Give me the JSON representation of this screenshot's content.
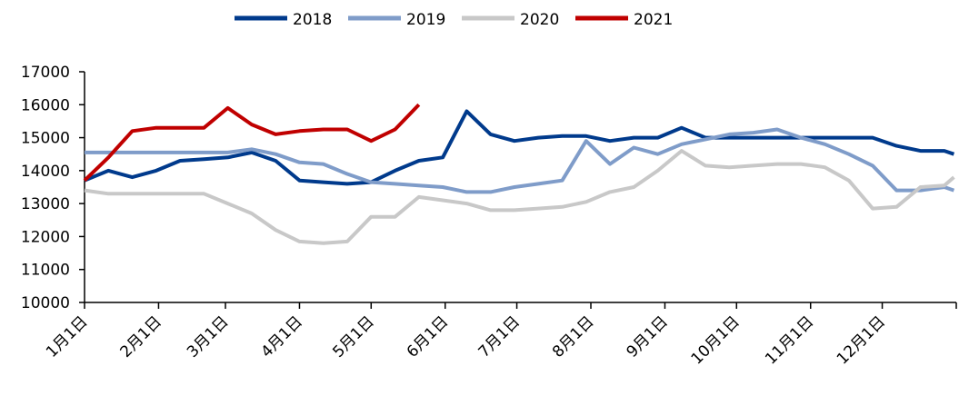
{
  "chart_data": {
    "type": "line",
    "x": [
      0,
      10,
      20,
      30,
      40,
      50,
      60,
      70,
      80,
      90,
      100,
      110,
      120,
      130,
      140,
      150,
      160,
      170,
      180,
      190,
      200,
      210,
      220,
      230,
      240,
      250,
      260,
      270,
      280,
      290,
      300,
      310,
      320,
      330,
      340,
      350,
      360,
      364
    ],
    "series": [
      {
        "name": "2018",
        "color": "#003a8c",
        "values": [
          13700,
          14000,
          13800,
          14000,
          14300,
          14350,
          14400,
          14550,
          14300,
          13700,
          13650,
          13600,
          13650,
          14000,
          14300,
          14400,
          15800,
          15100,
          14900,
          15000,
          15050,
          15050,
          14900,
          15000,
          15000,
          15300,
          15000,
          15000,
          15000,
          15000,
          15000,
          15000,
          15000,
          15000,
          14750,
          14600,
          14600,
          14500
        ]
      },
      {
        "name": "2019",
        "color": "#7f9cc9",
        "values": [
          14550,
          14550,
          14550,
          14550,
          14550,
          14550,
          14550,
          14650,
          14500,
          14250,
          14200,
          13900,
          13650,
          13600,
          13550,
          13500,
          13350,
          13350,
          13500,
          13600,
          13700,
          14900,
          14200,
          14700,
          14500,
          14800,
          14950,
          15100,
          15150,
          15250,
          15000,
          14800,
          14500,
          14150,
          13400,
          13400,
          13500,
          13400
        ]
      },
      {
        "name": "2020",
        "color": "#c8c8c8",
        "values": [
          13400,
          13300,
          13300,
          13300,
          13300,
          13300,
          13000,
          12700,
          12200,
          11850,
          11800,
          11850,
          12600,
          12600,
          13200,
          13100,
          13000,
          12800,
          12800,
          12850,
          12900,
          13050,
          13350,
          13500,
          14000,
          14600,
          14150,
          14100,
          14150,
          14200,
          14200,
          14100,
          13700,
          12850,
          12900,
          13500,
          13550,
          13800
        ]
      },
      {
        "name": "2021",
        "color": "#c00000",
        "values": [
          13700,
          14400,
          15200,
          15300,
          15300,
          15300,
          15900,
          15400,
          15100,
          15200,
          15250,
          15250,
          14900,
          15250,
          16000,
          null,
          null,
          null,
          null,
          null,
          null,
          null,
          null,
          null,
          null,
          null,
          null,
          null,
          null,
          null,
          null,
          null,
          null,
          null,
          null,
          null,
          null,
          null
        ]
      }
    ],
    "xlim": [
      0,
      365
    ],
    "xticks": [
      {
        "value": 0,
        "label": "1月1日"
      },
      {
        "value": 31,
        "label": "2月1日"
      },
      {
        "value": 59,
        "label": "3月1日"
      },
      {
        "value": 90,
        "label": "4月1日"
      },
      {
        "value": 120,
        "label": "5月1日"
      },
      {
        "value": 151,
        "label": "6月1日"
      },
      {
        "value": 181,
        "label": "7月1日"
      },
      {
        "value": 212,
        "label": "8月1日"
      },
      {
        "value": 243,
        "label": "9月1日"
      },
      {
        "value": 273,
        "label": "10月1日"
      },
      {
        "value": 304,
        "label": "11月1日"
      },
      {
        "value": 334,
        "label": "12月1日"
      }
    ],
    "ylim": [
      10000,
      17000
    ],
    "yticks": [
      10000,
      11000,
      12000,
      13000,
      14000,
      15000,
      16000,
      17000
    ]
  }
}
